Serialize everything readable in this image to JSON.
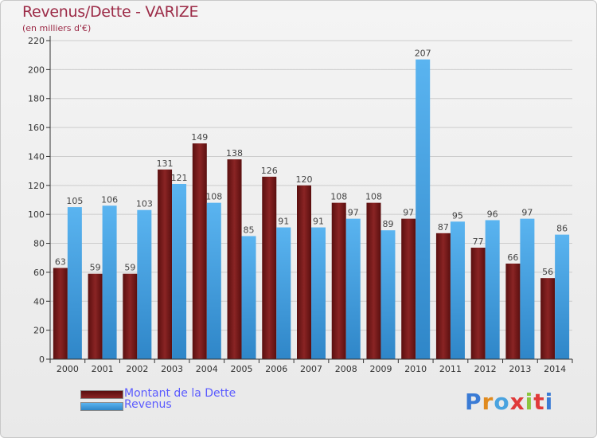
{
  "title": "Revenus/Dette - VARIZE",
  "subtitle": "(en milliers d'€)",
  "logo": {
    "text": "Proxiti",
    "letter_colors": [
      "#3a7bd5",
      "#e08a1e",
      "#4aa3df",
      "#e03a3a",
      "#8cc63f",
      "#e03a3a",
      "#3a7bd5"
    ]
  },
  "colors": {
    "dette": "#7a1a1a",
    "revenus": "#4fa8e8",
    "axis": "#333333",
    "grid": "#cccccc"
  },
  "chart_data": {
    "type": "bar",
    "title": "Revenus/Dette - VARIZE",
    "subtitle": "(en milliers d'€)",
    "categories": [
      "2000",
      "2001",
      "2002",
      "2003",
      "2004",
      "2005",
      "2006",
      "2007",
      "2008",
      "2009",
      "2010",
      "2011",
      "2012",
      "2013",
      "2014"
    ],
    "series": [
      {
        "name": "Montant de la Dette",
        "values": [
          63,
          59,
          59,
          131,
          149,
          138,
          126,
          120,
          108,
          108,
          97,
          87,
          77,
          66,
          56
        ]
      },
      {
        "name": "Revenus",
        "values": [
          105,
          106,
          103,
          121,
          108,
          85,
          91,
          91,
          97,
          89,
          207,
          95,
          96,
          97,
          86
        ]
      }
    ],
    "ylim": [
      0,
      220
    ],
    "yticks": [
      0,
      20,
      40,
      60,
      80,
      100,
      120,
      140,
      160,
      180,
      200,
      220
    ],
    "grid": true,
    "legend_position": "bottom-left"
  }
}
